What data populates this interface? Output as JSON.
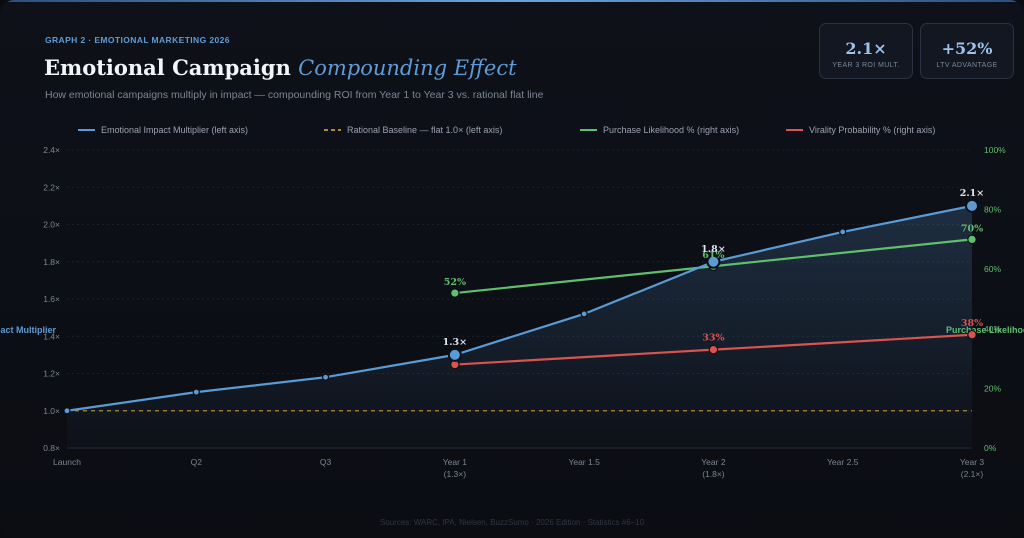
{
  "header": {
    "eyebrow": "GRAPH 2 · EMOTIONAL MARKETING 2026",
    "title_main": "Emotional Campaign",
    "title_accent": "Compounding Effect",
    "subtitle": "How emotional campaigns multiply in impact — compounding ROI from Year 1 to Year 3 vs. rational flat line"
  },
  "kpis": [
    {
      "value": "2.1×",
      "label": "YEAR 3 ROI MULT."
    },
    {
      "value": "+52%",
      "label": "LTV ADVANTAGE"
    }
  ],
  "footer": "Sources: WARC, IPA, Nielsen, BuzzSumo · 2026 Edition · Statistics #6–10",
  "colors": {
    "emotional": "#5b9bd5",
    "rational": "#b08a2e",
    "purchase": "#5fbf6e",
    "virality": "#d9534f"
  },
  "chart_data": {
    "type": "line",
    "categories": [
      "Launch",
      "Q2",
      "Q3",
      "Year 1",
      "Year 1.5",
      "Year 2",
      "Year 2.5",
      "Year 3"
    ],
    "category_sublabels": [
      "",
      "",
      "",
      "(1.3×)",
      "",
      "(1.8×)",
      "",
      "(2.1×)"
    ],
    "ylim_left": [
      0.8,
      2.4
    ],
    "left_ticks": [
      "0.8×",
      "1.0×",
      "1.2×",
      "1.4×",
      "1.6×",
      "1.8×",
      "2.0×",
      "2.2×",
      "2.4×"
    ],
    "left_axis_label": "Impact Multiplier",
    "ylim_right": [
      0,
      100
    ],
    "right_ticks": [
      "0%",
      "20%",
      "40%",
      "60%",
      "80%",
      "100%"
    ],
    "right_axis_label": "Purchase Likelihood",
    "series": [
      {
        "name": "Emotional Impact Multiplier (left axis)",
        "axis": "left",
        "color_key": "emotional",
        "values": [
          1.0,
          1.1,
          1.18,
          1.3,
          1.52,
          1.8,
          1.96,
          2.1
        ],
        "labels": [
          "",
          "",
          "",
          "1.3×",
          "",
          "1.8×",
          "",
          "2.1×"
        ],
        "big_points": [
          3,
          5,
          7
        ]
      },
      {
        "name": "Rational Baseline — flat 1.0× (left axis)",
        "axis": "left",
        "color_key": "rational",
        "dashed": true,
        "values": [
          1.0,
          1.0,
          1.0,
          1.0,
          1.0,
          1.0,
          1.0,
          1.0
        ]
      },
      {
        "name": "Purchase Likelihood % (right axis)",
        "axis": "right",
        "color_key": "purchase",
        "values": [
          null,
          null,
          null,
          52,
          null,
          61,
          null,
          70
        ],
        "labels": [
          "",
          "",
          "",
          "52%",
          "",
          "61%",
          "",
          "70%"
        ]
      },
      {
        "name": "Virality Probability % (right axis)",
        "axis": "right",
        "color_key": "virality",
        "values": [
          null,
          null,
          null,
          28,
          null,
          33,
          null,
          38
        ],
        "labels": [
          "",
          "",
          "",
          "",
          "",
          "33%",
          "",
          "38%"
        ]
      }
    ],
    "legend_position": "top",
    "grid": true
  }
}
